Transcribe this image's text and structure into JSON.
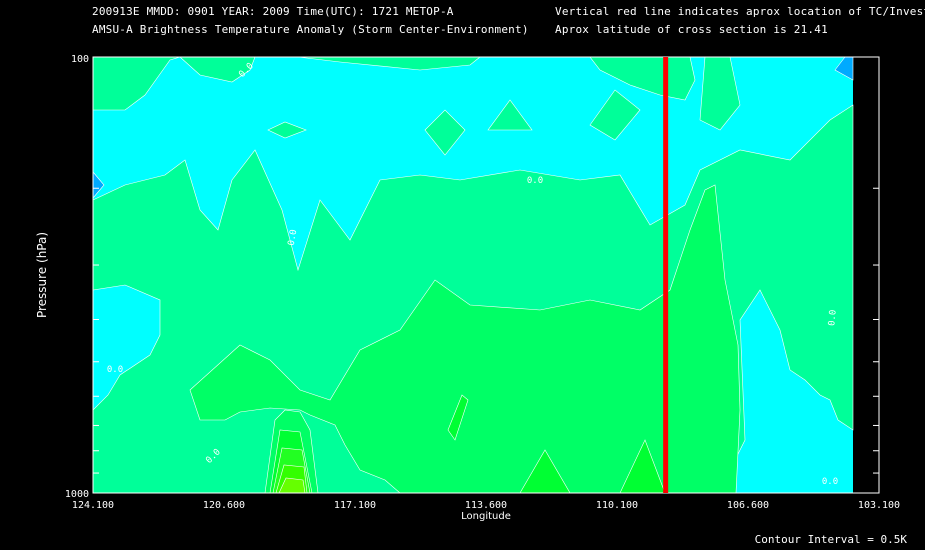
{
  "header": {
    "line1": "200913E  MMDD: 0901 YEAR: 2009 Time(UTC): 1721 METOP-A",
    "line2": "AMSU-A Brightness Temperature Anomaly (Storm Center-Environment)",
    "line3": "Vertical red line indicates aprox location of TC/Invest",
    "line4": "Aprox latitude of cross section is 21.41"
  },
  "footer": {
    "contour_interval": "Contour Interval = 0.5K"
  },
  "chart_data": {
    "type": "heatmap",
    "xlabel": "Longitude",
    "ylabel": "Pressure (hPa)",
    "xlim": [
      124.1,
      103.1
    ],
    "ylim": [
      1000,
      100
    ],
    "yscale": "log",
    "x_tick_labels": [
      "124.100",
      "120.600",
      "117.100",
      "113.600",
      "110.100",
      "106.600",
      "103.100"
    ],
    "y_tick_labels": [
      "100",
      "1000"
    ],
    "contour_labels": [
      "0.0",
      "0.0",
      "0.0",
      "0.0",
      "0.0",
      "0.0",
      "0.0"
    ],
    "tc_longitude": 108.8,
    "colors": {
      "background": "#000000",
      "negative": "#00ffff",
      "zero_to_half": "#00ff99",
      "half_to_one": "#00ff66",
      "one_plus": "#00ff33",
      "core": "#33ff00",
      "min": "#00aaff",
      "tc_line": "#ff0000"
    }
  }
}
